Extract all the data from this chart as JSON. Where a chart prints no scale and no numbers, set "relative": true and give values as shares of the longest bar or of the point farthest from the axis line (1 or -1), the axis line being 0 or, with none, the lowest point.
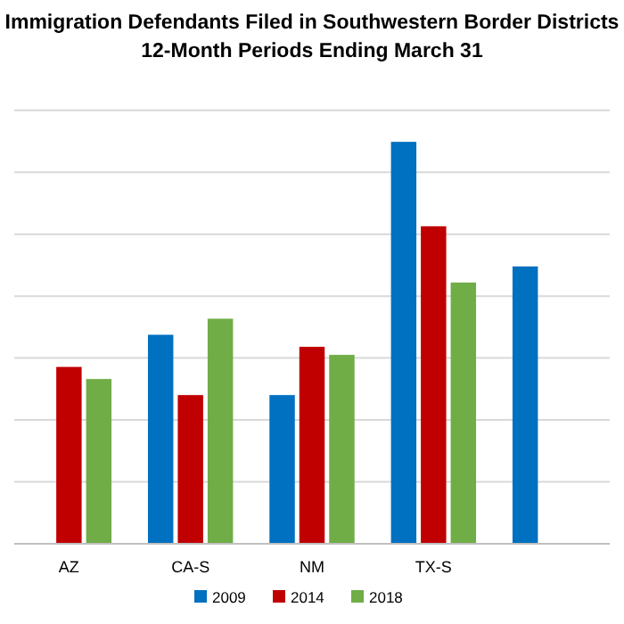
{
  "chart_data": {
    "type": "bar",
    "title": "Immigration Defendants Filed in Southwestern Border Districts",
    "subtitle": "12-Month Periods Ending March 31",
    "categories": [
      "AZ",
      "CA-S",
      "NM",
      "TX-S",
      null
    ],
    "relative": true,
    "grid": "y",
    "legend": "bottom",
    "series": [
      {
        "name": "2009",
        "color": "#0070c0",
        "values": [
          null,
          0.52,
          0.37,
          1,
          0.69
        ]
      },
      {
        "name": "2014",
        "color": "#c00000",
        "values": [
          0.44,
          0.37,
          0.49,
          0.79,
          null
        ]
      },
      {
        "name": "2018",
        "color": "#70ad47",
        "values": [
          0.41,
          0.56,
          0.47,
          0.65,
          null
        ]
      }
    ]
  }
}
